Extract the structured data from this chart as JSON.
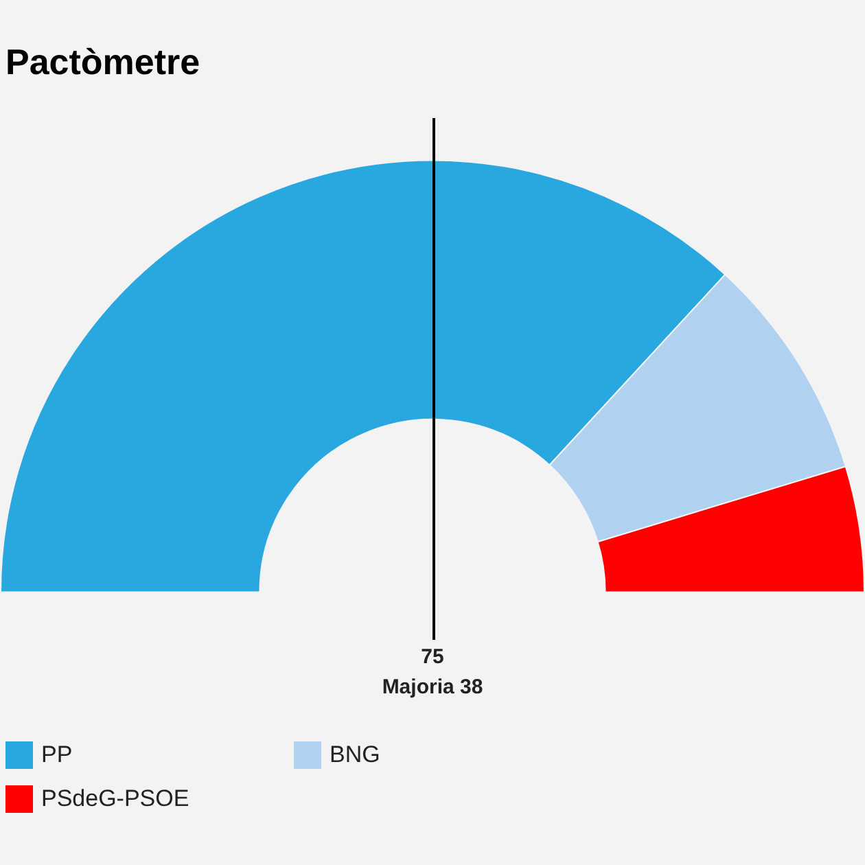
{
  "chart_data": {
    "type": "donut",
    "title": "Pactòmetre",
    "categories": [
      "PP",
      "BNG",
      "PSdeG-PSOE"
    ],
    "values": [
      73.7,
      16.9,
      9.4
    ],
    "colors": [
      "#29a8e0",
      "#b1d1f1",
      "#ff0000"
    ],
    "annotations": [
      "75",
      "Majoria 38"
    ],
    "legend": "bottom left"
  }
}
